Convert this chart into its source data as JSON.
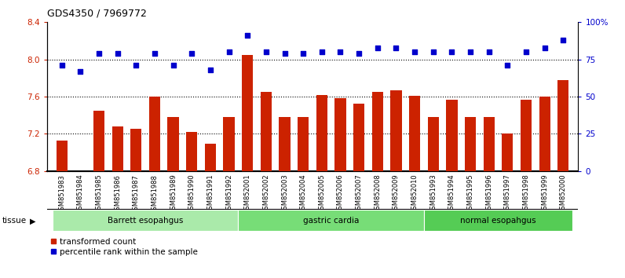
{
  "title": "GDS4350 / 7969772",
  "samples": [
    "GSM851983",
    "GSM851984",
    "GSM851985",
    "GSM851986",
    "GSM851987",
    "GSM851988",
    "GSM851989",
    "GSM851990",
    "GSM851991",
    "GSM851992",
    "GSM852001",
    "GSM852002",
    "GSM852003",
    "GSM852004",
    "GSM852005",
    "GSM852006",
    "GSM852007",
    "GSM852008",
    "GSM852009",
    "GSM852010",
    "GSM851993",
    "GSM851994",
    "GSM851995",
    "GSM851996",
    "GSM851997",
    "GSM851998",
    "GSM851999",
    "GSM852000"
  ],
  "bar_values": [
    7.13,
    6.8,
    7.45,
    7.28,
    7.25,
    7.6,
    7.38,
    7.22,
    7.09,
    7.38,
    8.05,
    7.65,
    7.38,
    7.38,
    7.62,
    7.58,
    7.52,
    7.65,
    7.67,
    7.61,
    7.38,
    7.57,
    7.38,
    7.38,
    7.2,
    7.57,
    7.6,
    7.78
  ],
  "scatter_values": [
    71,
    67,
    79,
    79,
    71,
    79,
    71,
    79,
    68,
    80,
    91,
    80,
    79,
    79,
    80,
    80,
    79,
    83,
    83,
    80,
    80,
    80,
    80,
    80,
    71,
    80,
    83,
    88
  ],
  "groups": [
    {
      "label": "Barrett esopahgus",
      "start": 0,
      "end": 10,
      "color": "#aaeaaa"
    },
    {
      "label": "gastric cardia",
      "start": 10,
      "end": 20,
      "color": "#77dd77"
    },
    {
      "label": "normal esopahgus",
      "start": 20,
      "end": 28,
      "color": "#55cc55"
    }
  ],
  "bar_color": "#cc2200",
  "scatter_color": "#0000cc",
  "ylim_left": [
    6.8,
    8.4
  ],
  "ylim_right": [
    0,
    100
  ],
  "yticks_left": [
    6.8,
    7.2,
    7.6,
    8.0,
    8.4
  ],
  "yticks_right": [
    0,
    25,
    50,
    75,
    100
  ],
  "ytick_labels_right": [
    "0",
    "25",
    "50",
    "75",
    "100%"
  ],
  "hlines": [
    7.2,
    7.6,
    8.0
  ],
  "plot_bg": "#ffffff",
  "xtick_bg": "#d8d8d8",
  "legend": [
    {
      "label": "transformed count",
      "color": "#cc2200",
      "marker": "s"
    },
    {
      "label": "percentile rank within the sample",
      "color": "#0000cc",
      "marker": "s"
    }
  ]
}
